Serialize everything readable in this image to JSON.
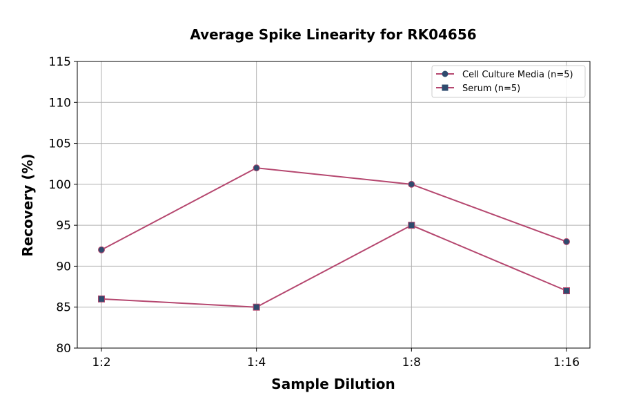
{
  "chart_data": {
    "type": "line",
    "title": "Average Spike Linearity for RK04656",
    "xlabel": "Sample Dilution",
    "ylabel": "Recovery (%)",
    "categories": [
      "1:2",
      "1:4",
      "1:8",
      "1:16"
    ],
    "ylim": [
      80,
      115
    ],
    "yticks": [
      80,
      85,
      90,
      95,
      100,
      105,
      110,
      115
    ],
    "grid": true,
    "legend_position": "top-right",
    "series": [
      {
        "name": "Cell Culture Media (n=5)",
        "values": [
          92,
          102,
          100,
          93
        ],
        "marker": "circle",
        "line_color": "#b5476f",
        "marker_color": "#2f4b6e"
      },
      {
        "name": "Serum (n=5)",
        "values": [
          86,
          85,
          95,
          87
        ],
        "marker": "square",
        "line_color": "#b5476f",
        "marker_color": "#2f4b6e"
      }
    ]
  }
}
